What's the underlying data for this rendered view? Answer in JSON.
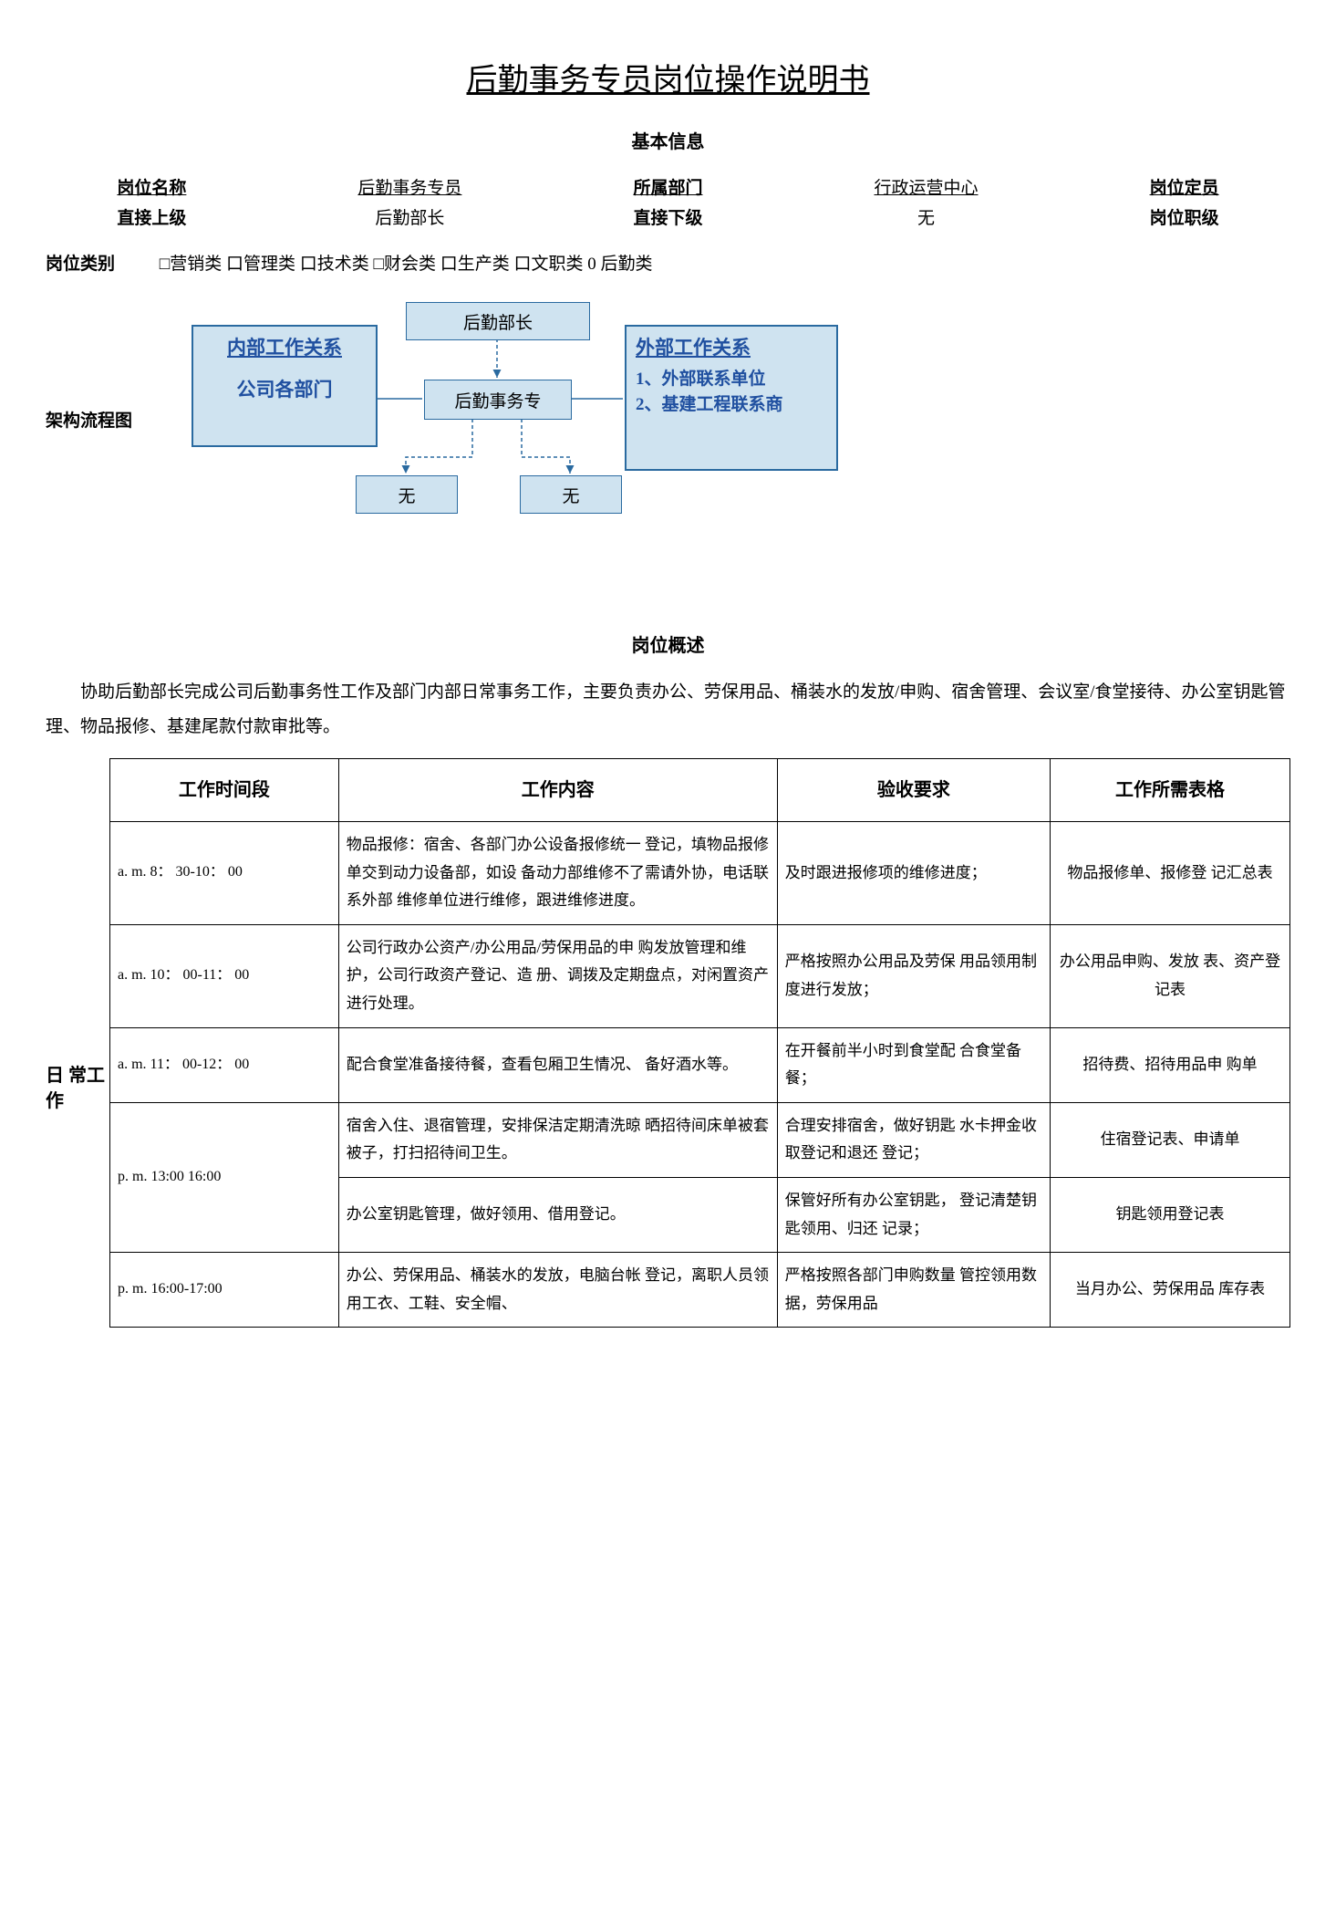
{
  "title": "后勤事务专员岗位操作说明书",
  "section_basic": "基本信息",
  "info": {
    "name_label": "岗位名称",
    "name_value": "后勤事务专员",
    "dept_label": "所属部门",
    "dept_value": "行政运营中心",
    "quota_label": "岗位定员",
    "sup_label": "直接上级",
    "sup_value": "后勤部长",
    "sub_label": "直接下级",
    "sub_value": "无",
    "rank_label": "岗位职级"
  },
  "category": {
    "label": "岗位类别",
    "options": "□营销类 口管理类 口技术类 □财会类 口生产类 口文职类 0 后勤类"
  },
  "flow": {
    "label": "架构流程图",
    "top": "后勤部长",
    "mid": "后勤事务专",
    "left_hdr": "内部工作关系",
    "left_body": "公司各部门",
    "right_hdr": "外部工作关系",
    "right_line1": "1、外部联系单位",
    "right_line2": "2、基建工程联系商",
    "bot": "无",
    "colors": {
      "fill": "#cfe3f0",
      "stroke": "#2a6aa0",
      "text_blue": "#2050a0"
    }
  },
  "overview": {
    "heading": "岗位概述",
    "text": "协助后勤部长完成公司后勤事务性工作及部门内部日常事务工作，主要负责办公、劳保用品、桶装水的发放/申购、宿舍管理、会议室/食堂接待、办公室钥匙管理、物品报修、基建尾款付款审批等。"
  },
  "work": {
    "side": "日 常工 作",
    "headers": [
      "工作时间段",
      "工作内容",
      "验收要求",
      "工作所需表格"
    ],
    "rows": [
      {
        "time": "a. m. 8： 30-10： 00",
        "content": "物品报修：宿舍、各部门办公设备报修统一 登记，填物品报修单交到动力设备部，如设 备动力部维修不了需请外协，电话联系外部 维修单位进行维修，跟进维修进度。",
        "req": "及时跟进报修项的维修进度；",
        "form": "物品报修单、报修登 记汇总表",
        "rowspan_time": 1
      },
      {
        "time": "a. m. 10： 00-11： 00",
        "content": "公司行政办公资产/办公用品/劳保用品的申 购发放管理和维护，公司行政资产登记、造 册、调拨及定期盘点，对闲置资产进行处理。",
        "req": "严格按照办公用品及劳保 用品领用制度进行发放；",
        "form": "办公用品申购、发放 表、资产登记表",
        "rowspan_time": 1
      },
      {
        "time": "a. m. 11： 00-12： 00",
        "content": "配合食堂准备接待餐，查看包厢卫生情况、 备好酒水等。",
        "req": "在开餐前半小时到食堂配 合食堂备餐；",
        "form": "招待费、招待用品申 购单",
        "rowspan_time": 1
      },
      {
        "time": "p. m. 13:00 16:00",
        "content": "宿舍入住、退宿管理，安排保洁定期清洗晾 晒招待间床单被套被子，打扫招待间卫生。",
        "req": "合理安排宿舍，做好钥匙 水卡押金收取登记和退还 登记；",
        "form": "住宿登记表、申请单",
        "rowspan_time": 2
      },
      {
        "time": "",
        "content": "办公室钥匙管理，做好领用、借用登记。",
        "req": "保管好所有办公室钥匙， 登记清楚钥匙领用、归还 记录；",
        "form": "钥匙领用登记表",
        "rowspan_time": 0
      },
      {
        "time": "p. m. 16:00-17:00",
        "content": "办公、劳保用品、桶装水的发放，电脑台帐 登记，离职人员领用工衣、工鞋、安全帽、",
        "req": "严格按照各部门申购数量 管控领用数据，劳保用品",
        "form": "当月办公、劳保用品 库存表",
        "rowspan_time": 1
      }
    ]
  }
}
